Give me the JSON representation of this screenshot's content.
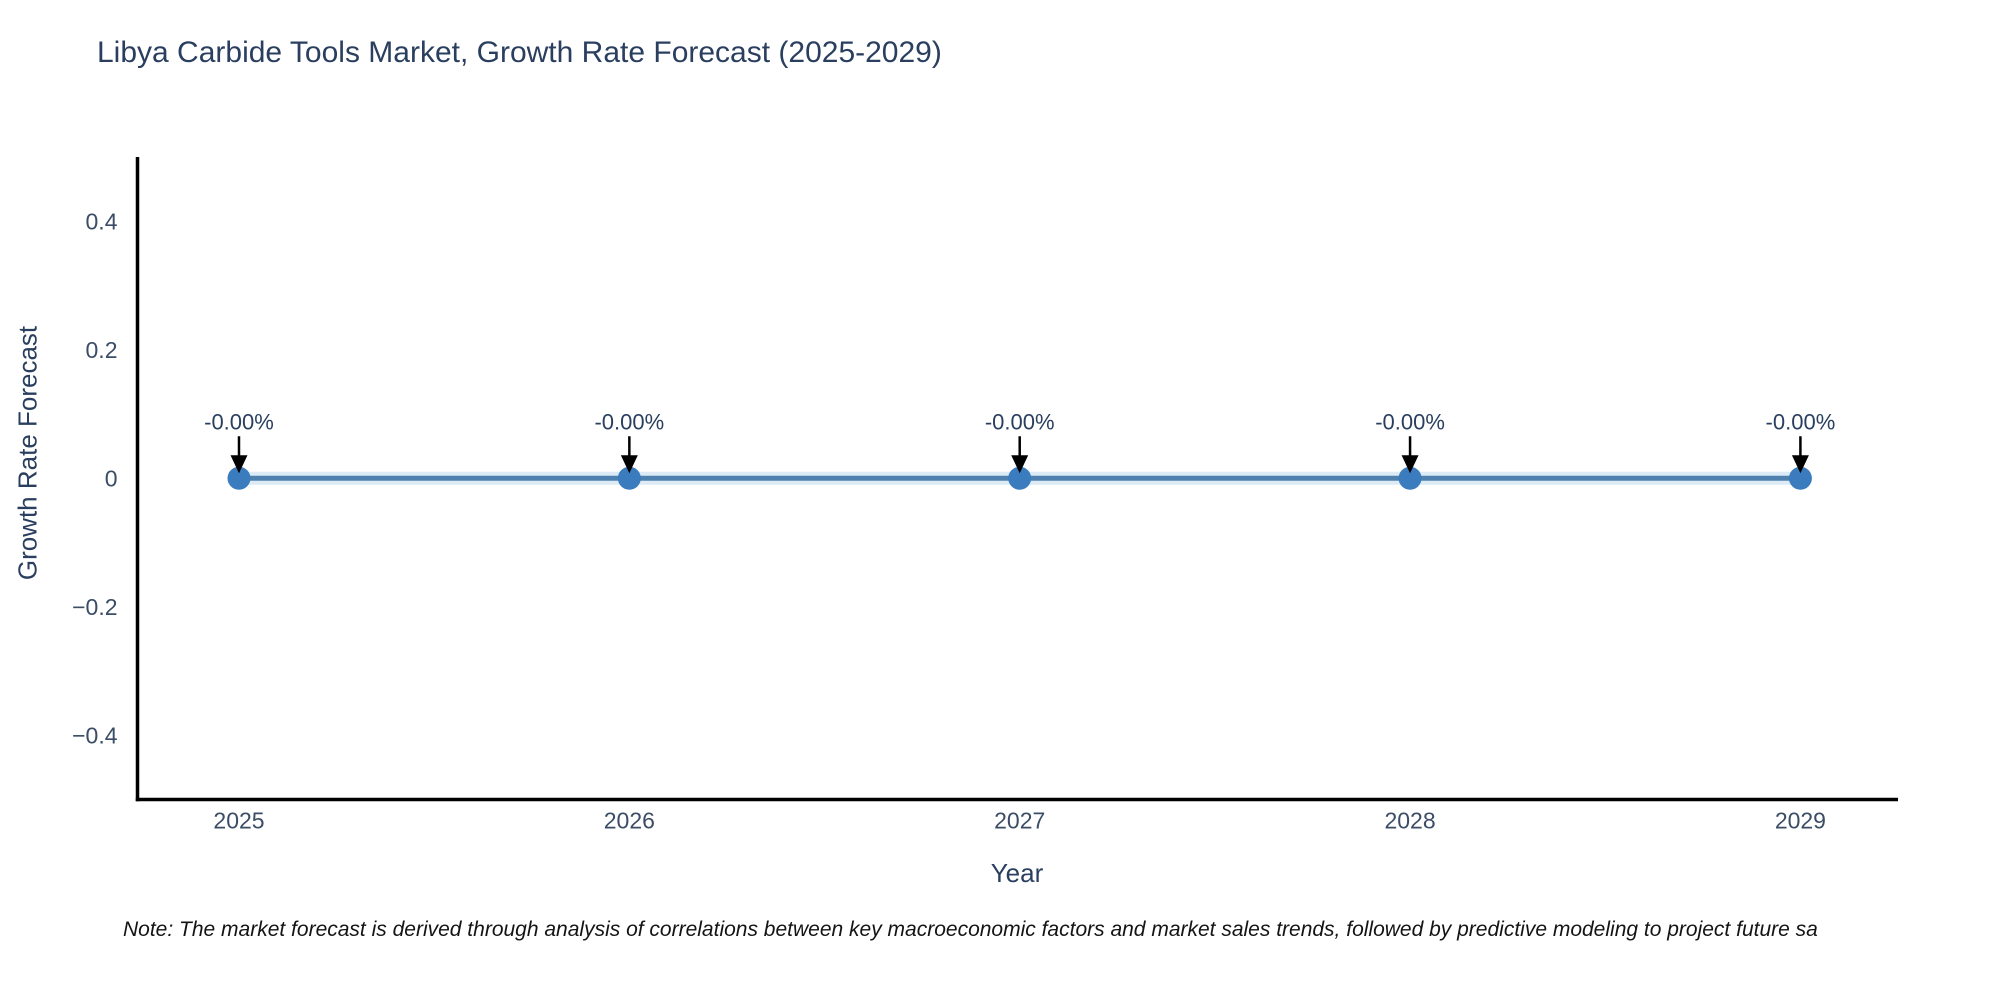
{
  "page": {
    "background": "#ffffff"
  },
  "header": {
    "title": "Libya Carbide Tools Market, Growth Rate Forecast (2025-2029)"
  },
  "footnote": "Note: The market forecast is derived through analysis of correlations between key macroeconomic factors and market sales trends, followed by predictive modeling to project future sa",
  "chart_data": {
    "type": "line",
    "title": "Libya Carbide Tools Market, Growth Rate Forecast (2025-2029)",
    "xlabel": "Year",
    "ylabel": "Growth Rate Forecast",
    "x": [
      2025,
      2026,
      2027,
      2028,
      2029
    ],
    "values": [
      0,
      0,
      0,
      0,
      0
    ],
    "point_labels": [
      "-0.00%",
      "-0.00%",
      "-0.00%",
      "-0.00%",
      "-0.00%"
    ],
    "x_tick_labels": [
      "2025",
      "2026",
      "2027",
      "2028",
      "2029"
    ],
    "y_tick_values": [
      0.4,
      0.2,
      0,
      -0.2,
      -0.4
    ],
    "y_tick_labels": [
      "0.4",
      "0.2",
      "0",
      "−0.2",
      "−0.4"
    ],
    "xlim": [
      2024.74,
      2029.25
    ],
    "ylim": [
      -0.5,
      0.5
    ],
    "grid": false,
    "legend_position": "none",
    "colors": {
      "line": "#4e81ad",
      "line_halo": "#dcebf6",
      "marker": "#3a7cbe",
      "axis": "#000000",
      "title_text": "#2a3f5f",
      "tick_text": "#3b4d66",
      "annotation_text": "#2a3f5f",
      "arrow": "#000000"
    }
  }
}
